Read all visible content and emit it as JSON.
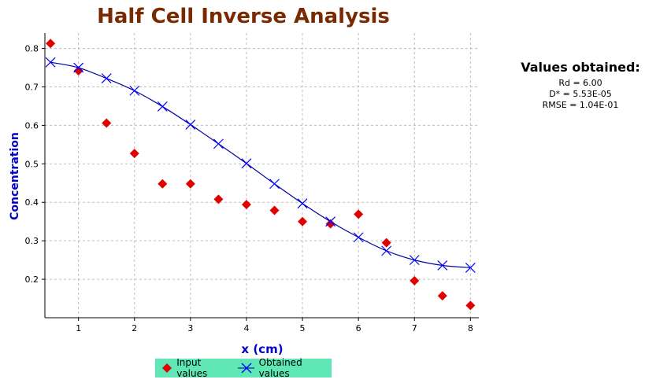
{
  "chart_data": {
    "type": "scatter",
    "title": "Half Cell Inverse Analysis",
    "xlabel": "x (cm)",
    "ylabel": "Concentration",
    "xlim": [
      0.4,
      8.15
    ],
    "ylim": [
      0.1,
      0.84
    ],
    "xticks": [
      1,
      2,
      3,
      4,
      5,
      6,
      7,
      8
    ],
    "yticks": [
      0.2,
      0.3,
      0.4,
      0.5,
      0.6,
      0.7,
      0.8
    ],
    "grid": true,
    "legend_position": "bottom",
    "series": [
      {
        "name": "Input values",
        "marker": "diamond",
        "color": "#e00000",
        "x": [
          0.5,
          1,
          1.5,
          2,
          2.5,
          3,
          3.5,
          4,
          4.5,
          5,
          5.5,
          6,
          6.5,
          7,
          7.5,
          8
        ],
        "y": [
          0.813,
          0.742,
          0.606,
          0.527,
          0.448,
          0.448,
          0.408,
          0.394,
          0.379,
          0.35,
          0.344,
          0.369,
          0.295,
          0.196,
          0.157,
          0.132
        ]
      },
      {
        "name": "Obtained values",
        "marker": "x",
        "line": true,
        "color": "#0000a0",
        "x": [
          0.5,
          1,
          1.5,
          2,
          2.5,
          3,
          3.5,
          4,
          4.5,
          5,
          5.5,
          6,
          6.5,
          7,
          7.5,
          8
        ],
        "y": [
          0.764,
          0.75,
          0.722,
          0.69,
          0.649,
          0.602,
          0.552,
          0.501,
          0.448,
          0.397,
          0.35,
          0.309,
          0.274,
          0.25,
          0.236,
          0.23
        ]
      }
    ]
  },
  "panel": {
    "title": "Values obtained:",
    "lines": [
      "Rd = 6.00",
      "D* = 5.53E-05",
      "RMSE = 1.04E-01"
    ]
  },
  "legend": {
    "input_label": "Input values",
    "obtained_label": "Obtained values"
  },
  "colors": {
    "title": "#7a2a00",
    "axis_label": "#0000cc",
    "input_marker": "#e00000",
    "obtained_line": "#0000a0",
    "legend_bg": "#5fe8b5"
  }
}
